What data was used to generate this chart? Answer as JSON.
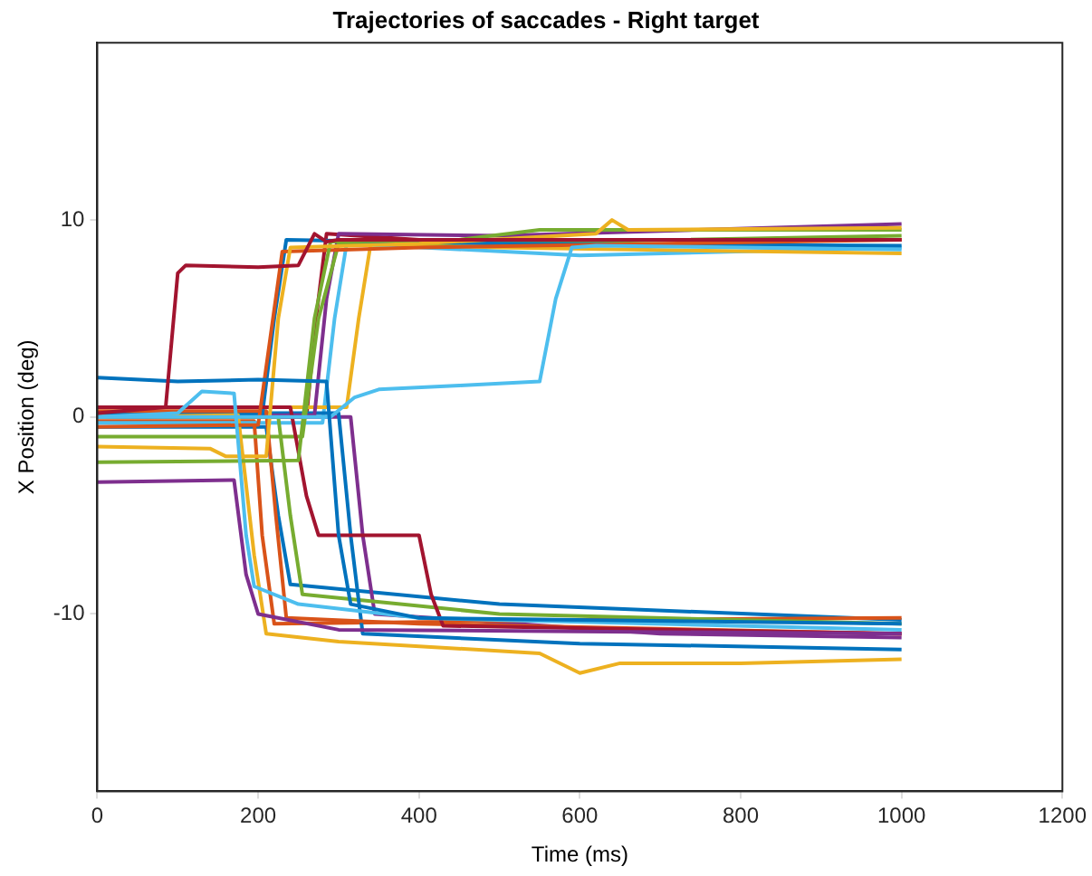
{
  "chart_data": {
    "type": "line",
    "title": "Trajectories of saccades - Right target",
    "xlabel": "Time (ms)",
    "ylabel": "X Position (deg)",
    "xlim": [
      0,
      1200
    ],
    "xticks": [
      0,
      200,
      400,
      600,
      800,
      1000,
      1200
    ],
    "ylim": [
      -19,
      19
    ],
    "yticks": [
      -10,
      0,
      10
    ],
    "grid": false,
    "legend": false,
    "series": [
      {
        "color": "#a2142f",
        "x": [
          0,
          85,
          100,
          110,
          200,
          250,
          270,
          285,
          300,
          1000
        ],
        "values": [
          0.2,
          0.5,
          7.3,
          7.7,
          7.6,
          7.7,
          9.3,
          8.9,
          9.0,
          9.0
        ]
      },
      {
        "color": "#0072bd",
        "x": [
          0,
          100,
          200,
          285,
          300,
          315,
          400,
          1000
        ],
        "values": [
          2.0,
          1.8,
          1.9,
          1.8,
          -6.0,
          -9.5,
          -10.2,
          -10.5
        ]
      },
      {
        "color": "#4dbeee",
        "x": [
          0,
          100,
          130,
          170,
          185,
          195,
          250,
          400,
          1000
        ],
        "values": [
          0.0,
          0.2,
          1.3,
          1.2,
          -6.0,
          -8.6,
          -9.5,
          -10.2,
          -10.8
        ]
      },
      {
        "color": "#4dbeee",
        "x": [
          0,
          290,
          320,
          350,
          450,
          550,
          570,
          590,
          620,
          1000
        ],
        "values": [
          0.0,
          0.0,
          1.0,
          1.4,
          1.6,
          1.8,
          6.0,
          8.6,
          8.7,
          8.5
        ]
      },
      {
        "color": "#edb120",
        "x": [
          0,
          140,
          160,
          210,
          225,
          240,
          400,
          620,
          640,
          660,
          1000
        ],
        "values": [
          -1.5,
          -1.6,
          -2.0,
          -2.0,
          5.0,
          8.6,
          8.8,
          9.3,
          10.0,
          9.5,
          9.6
        ]
      },
      {
        "color": "#7e2f8e",
        "x": [
          0,
          170,
          185,
          200,
          300,
          1000
        ],
        "values": [
          -3.3,
          -3.2,
          -8.0,
          -10.0,
          -10.8,
          -11.0
        ]
      },
      {
        "color": "#77ac30",
        "x": [
          0,
          250,
          270,
          290,
          450,
          550,
          1000
        ],
        "values": [
          -2.3,
          -2.2,
          5.0,
          8.9,
          9.0,
          9.5,
          9.5
        ]
      },
      {
        "color": "#d95319",
        "x": [
          0,
          200,
          215,
          230,
          400,
          1000
        ],
        "values": [
          -0.5,
          -0.4,
          4.0,
          8.4,
          8.6,
          9.0
        ]
      },
      {
        "color": "#edb120",
        "x": [
          0,
          175,
          195,
          210,
          300,
          550,
          600,
          650,
          800,
          1000
        ],
        "values": [
          0.0,
          0.1,
          -7.0,
          -11.0,
          -11.4,
          -12.0,
          -13.0,
          -12.5,
          -12.5,
          -12.3
        ]
      },
      {
        "color": "#a2142f",
        "x": [
          0,
          240,
          260,
          275,
          400,
          415,
          430,
          1000
        ],
        "values": [
          0.5,
          0.5,
          -4.0,
          -6.0,
          -6.0,
          -9.0,
          -10.6,
          -11.0
        ]
      },
      {
        "color": "#0072bd",
        "x": [
          0,
          205,
          220,
          235,
          500,
          1000
        ],
        "values": [
          0.0,
          0.1,
          5.0,
          9.0,
          8.8,
          8.7
        ]
      },
      {
        "color": "#d95319",
        "x": [
          0,
          210,
          222,
          235,
          400,
          1000
        ],
        "values": [
          0.3,
          0.3,
          -5.0,
          -10.2,
          -10.5,
          -11.0
        ]
      },
      {
        "color": "#77ac30",
        "x": [
          0,
          255,
          275,
          300,
          600,
          1000
        ],
        "values": [
          -1.0,
          -1.0,
          5.0,
          8.8,
          8.9,
          9.2
        ]
      },
      {
        "color": "#7e2f8e",
        "x": [
          0,
          270,
          285,
          300,
          500,
          1000
        ],
        "values": [
          0.0,
          0.1,
          6.0,
          9.3,
          9.2,
          9.8
        ]
      },
      {
        "color": "#0072bd",
        "x": [
          0,
          300,
          315,
          330,
          600,
          1000
        ],
        "values": [
          0.2,
          0.2,
          -6.0,
          -11.0,
          -11.5,
          -11.8
        ]
      },
      {
        "color": "#edb120",
        "x": [
          0,
          310,
          325,
          340,
          500,
          1000
        ],
        "values": [
          0.5,
          0.5,
          5.0,
          8.8,
          8.6,
          8.3
        ]
      },
      {
        "color": "#77ac30",
        "x": [
          0,
          225,
          240,
          255,
          500,
          1000
        ],
        "values": [
          0.0,
          0.0,
          -5.0,
          -9.0,
          -10.0,
          -10.5
        ]
      },
      {
        "color": "#4dbeee",
        "x": [
          0,
          280,
          295,
          310,
          600,
          1000
        ],
        "values": [
          -0.3,
          -0.3,
          5.0,
          8.8,
          8.2,
          8.6
        ]
      },
      {
        "color": "#a2142f",
        "x": [
          0,
          260,
          272,
          285,
          400,
          1000
        ],
        "values": [
          0.0,
          0.0,
          5.0,
          9.3,
          9.0,
          9.0
        ]
      },
      {
        "color": "#d95319",
        "x": [
          0,
          195,
          205,
          220,
          600,
          1000
        ],
        "values": [
          -0.2,
          -0.2,
          -6.0,
          -10.5,
          -10.3,
          -10.2
        ]
      },
      {
        "color": "#7e2f8e",
        "x": [
          0,
          315,
          330,
          345,
          700,
          1000
        ],
        "values": [
          0.0,
          0.0,
          -6.0,
          -10.0,
          -11.0,
          -11.2
        ]
      },
      {
        "color": "#0072bd",
        "x": [
          0,
          210,
          225,
          240,
          500,
          1000
        ],
        "values": [
          -0.5,
          -0.5,
          -5.0,
          -8.5,
          -9.5,
          -10.3
        ]
      }
    ]
  }
}
